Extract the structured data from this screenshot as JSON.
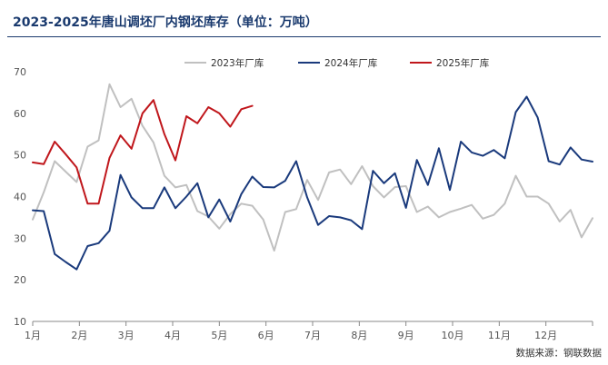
{
  "title": "2023-2025年唐山调坯厂内钢坯库存（单位：万吨）",
  "source": "数据来源：钢联数据",
  "chart_data": {
    "type": "line",
    "title": "2023-2025年唐山调坯厂内钢坯库存（单位：万吨）",
    "xlabel": "",
    "ylabel": "",
    "ylim": [
      10,
      70
    ],
    "yticks": [
      10,
      20,
      30,
      40,
      50,
      60,
      70
    ],
    "x_tick_labels": [
      "1月",
      "2月",
      "3月",
      "4月",
      "5月",
      "6月",
      "7月",
      "8月",
      "9月",
      "10月",
      "11月",
      "12月"
    ],
    "grid": false,
    "legend_position": "top",
    "series": [
      {
        "name": "2023年厂库",
        "color": "#c0c0c0",
        "values": [
          34.5,
          41,
          48.5,
          46,
          43.5,
          52,
          53.5,
          67,
          61.5,
          63.5,
          57,
          53,
          45,
          42.2,
          42.8,
          36.5,
          35.2,
          32.3,
          35.8,
          38.3,
          37.8,
          34.5,
          27,
          36.3,
          37,
          44,
          39.2,
          45.8,
          46.5,
          43,
          47.3,
          42.5,
          39.8,
          42.3,
          42.5,
          36.3,
          37.6,
          35,
          36.3,
          37.1,
          38,
          34.7,
          35.6,
          38.3,
          45,
          40,
          40,
          38.3,
          34,
          36.8,
          30.2,
          34.8
        ]
      },
      {
        "name": "2024年厂库",
        "color": "#1a3a7c",
        "values": [
          36.7,
          36.5,
          26.2,
          24.3,
          22.5,
          28.1,
          28.8,
          31.8,
          45.2,
          39.8,
          37.2,
          37.2,
          42.2,
          37.2,
          40,
          43.2,
          35,
          39.3,
          34,
          40.6,
          44.8,
          42.3,
          42.2,
          43.8,
          48.5,
          39.8,
          33.2,
          35.3,
          35,
          34.3,
          32.2,
          46.2,
          43.2,
          45.6,
          37.3,
          48.8,
          42.8,
          51.6,
          41.6,
          53.2,
          50.6,
          49.8,
          51.2,
          49.2,
          60.3,
          64,
          59,
          48.5,
          47.7,
          51.8,
          48.9,
          48.4
        ]
      },
      {
        "name": "2025年厂库",
        "color": "#c0171c",
        "values": [
          48.2,
          47.8,
          53.2,
          50.2,
          47,
          38.3,
          38.3,
          49.3,
          54.7,
          51.5,
          60,
          63.2,
          55,
          48.7,
          59.3,
          57.6,
          61.5,
          60,
          56.8,
          61,
          61.8
        ]
      }
    ]
  }
}
